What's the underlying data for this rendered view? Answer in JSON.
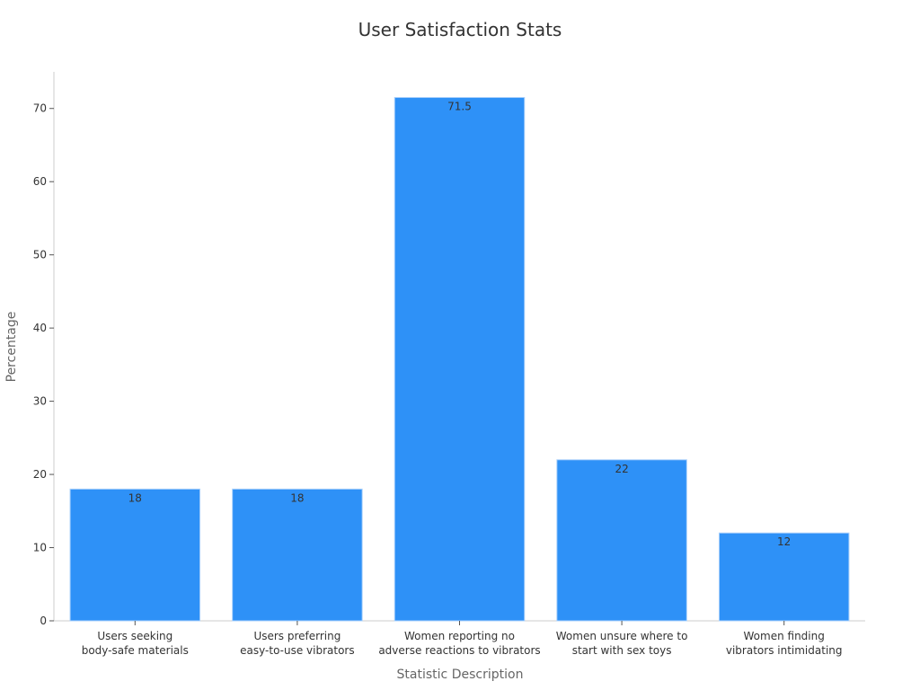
{
  "chart_data": {
    "type": "bar",
    "title": "User Satisfaction Stats",
    "xlabel": "Statistic Description",
    "ylabel": "Percentage",
    "categories": [
      [
        "Users seeking",
        "body-safe materials"
      ],
      [
        "Users preferring",
        "easy-to-use vibrators"
      ],
      [
        "Women reporting no",
        "adverse reactions to vibrators"
      ],
      [
        "Women unsure where to",
        "start with sex toys"
      ],
      [
        "Women finding",
        "vibrators intimidating"
      ]
    ],
    "values": [
      18,
      18,
      71.5,
      22,
      12
    ],
    "data_labels": [
      "18",
      "18",
      "71.5",
      "22",
      "12"
    ],
    "ylim": [
      0,
      75
    ],
    "yticks": [
      0,
      10,
      20,
      30,
      40,
      50,
      60,
      70
    ],
    "grid": false,
    "legend": "none",
    "colors": {
      "bar": "#2e91f7",
      "bar_edge": "#a9d0fb",
      "axis": "#cccccc",
      "text": "#333333",
      "label": "#666666"
    }
  }
}
